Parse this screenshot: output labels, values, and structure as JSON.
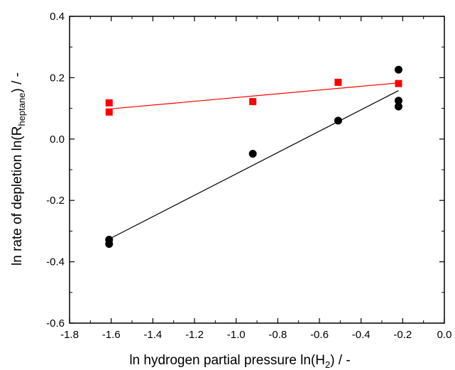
{
  "chart_data": {
    "type": "scatter",
    "xlabel": {
      "main": "ln hydrogen partial pressure ln(H",
      "sub": "2",
      "tail": ") / -"
    },
    "ylabel": {
      "main": "ln rate of depletion ln(R",
      "sub": "heptane",
      "tail": ") / -"
    },
    "xlim": [
      -1.8,
      0.0
    ],
    "ylim": [
      -0.6,
      0.4
    ],
    "x_ticks": [
      "-1.8",
      "-1.6",
      "-1.4",
      "-1.2",
      "-1.0",
      "-0.8",
      "-0.6",
      "-0.4",
      "-0.2",
      "0.0"
    ],
    "y_ticks": [
      "-0.6",
      "-0.4",
      "-0.2",
      "0.0",
      "0.2",
      "0.4"
    ],
    "grid": false,
    "series": [
      {
        "marker": "square",
        "color": "#ff0000",
        "points": [
          {
            "x": -1.61,
            "y": 0.118
          },
          {
            "x": -1.61,
            "y": 0.088
          },
          {
            "x": -0.92,
            "y": 0.122
          },
          {
            "x": -0.51,
            "y": 0.185
          },
          {
            "x": -0.22,
            "y": 0.181
          }
        ],
        "fit": {
          "x": [
            -1.61,
            -0.22
          ],
          "y": [
            0.098,
            0.183
          ]
        }
      },
      {
        "marker": "circle",
        "color": "#000000",
        "points": [
          {
            "x": -1.61,
            "y": -0.328
          },
          {
            "x": -1.61,
            "y": -0.342
          },
          {
            "x": -0.92,
            "y": -0.048
          },
          {
            "x": -0.51,
            "y": 0.06
          },
          {
            "x": -0.22,
            "y": 0.226
          },
          {
            "x": -0.22,
            "y": 0.125
          },
          {
            "x": -0.22,
            "y": 0.106
          }
        ],
        "fit": {
          "x": [
            -1.61,
            -0.22
          ],
          "y": [
            -0.326,
            0.158
          ]
        }
      }
    ]
  }
}
